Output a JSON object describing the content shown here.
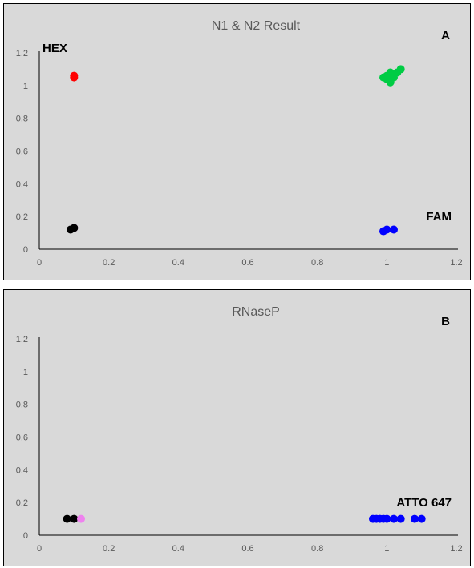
{
  "colors": {
    "background": "#d9d9d9",
    "red": "#ff0000",
    "green": "#00cc44",
    "black": "#000000",
    "pink": "#ee82ee",
    "blue": "#0000ff"
  },
  "chart_data": [
    {
      "type": "scatter",
      "title": "N1 & N2 Result",
      "panel_label": "A",
      "xlim": [
        0,
        1.2
      ],
      "ylim": [
        0,
        1.2
      ],
      "x_ticks": [
        "0",
        "0.2",
        "0.4",
        "0.6",
        "0.8",
        "1",
        "1.2"
      ],
      "y_ticks": [
        "0",
        "0.2",
        "0.4",
        "0.6",
        "0.8",
        "1",
        "1.2"
      ],
      "grid": false,
      "annotations": [
        {
          "text": "HEX",
          "x": 0.0,
          "y": 1.23
        },
        {
          "text": "FAM",
          "x": 1.2,
          "y": 0.2
        }
      ],
      "series": [
        {
          "color": "#ff0000",
          "points": [
            [
              0.1,
              1.05
            ],
            [
              0.1,
              1.06
            ]
          ]
        },
        {
          "color": "#00cc44",
          "points": [
            [
              0.99,
              1.05
            ],
            [
              1.0,
              1.06
            ],
            [
              1.01,
              1.08
            ],
            [
              1.01,
              1.03
            ],
            [
              1.02,
              1.07
            ],
            [
              1.03,
              1.08
            ],
            [
              1.04,
              1.1
            ],
            [
              1.0,
              1.04
            ],
            [
              1.02,
              1.05
            ],
            [
              1.01,
              1.02
            ]
          ]
        },
        {
          "color": "#ee82ee",
          "points": [
            [
              0.1,
              0.13
            ]
          ]
        },
        {
          "color": "#000000",
          "points": [
            [
              0.09,
              0.12
            ],
            [
              0.1,
              0.13
            ]
          ]
        },
        {
          "color": "#0000ff",
          "points": [
            [
              0.99,
              0.11
            ],
            [
              1.0,
              0.12
            ],
            [
              1.02,
              0.12
            ]
          ]
        }
      ]
    },
    {
      "type": "scatter",
      "title": "RNaseP",
      "panel_label": "B",
      "xlim": [
        0,
        1.2
      ],
      "ylim": [
        0,
        1.2
      ],
      "x_ticks": [
        "0",
        "0.2",
        "0.4",
        "0.6",
        "0.8",
        "1",
        "1.2"
      ],
      "y_ticks": [
        "0",
        "0.2",
        "0.4",
        "0.6",
        "0.8",
        "1",
        "1.2"
      ],
      "grid": false,
      "annotations": [
        {
          "text": "ATTO 647",
          "x": 1.2,
          "y": 0.2
        }
      ],
      "series": [
        {
          "color": "#000000",
          "points": [
            [
              0.08,
              0.1
            ],
            [
              0.1,
              0.1
            ]
          ]
        },
        {
          "color": "#ee82ee",
          "points": [
            [
              0.12,
              0.1
            ]
          ]
        },
        {
          "color": "#0000ff",
          "points": [
            [
              0.96,
              0.1
            ],
            [
              0.97,
              0.1
            ],
            [
              0.98,
              0.1
            ],
            [
              0.99,
              0.1
            ],
            [
              1.0,
              0.1
            ],
            [
              1.02,
              0.1
            ],
            [
              1.04,
              0.1
            ],
            [
              1.08,
              0.1
            ],
            [
              1.1,
              0.1
            ]
          ]
        }
      ]
    }
  ]
}
